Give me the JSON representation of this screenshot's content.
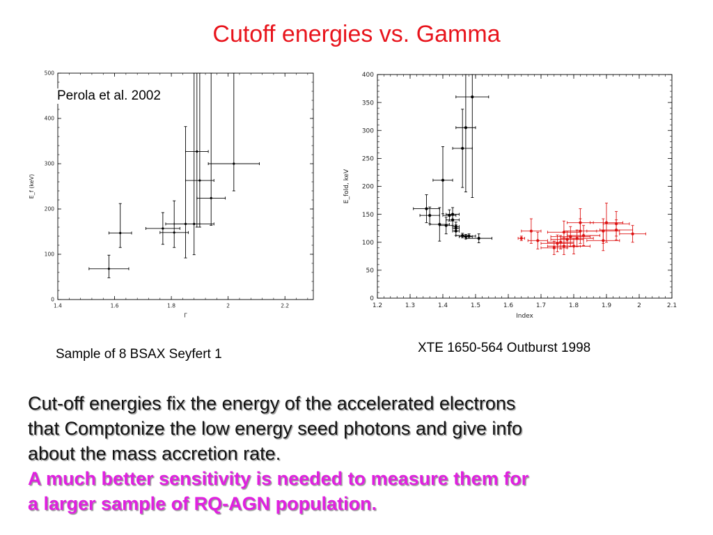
{
  "slide": {
    "title": "Cutoff energies vs. Gamma",
    "caption_left": "Sample of 8 BSAX Seyfert 1",
    "caption_right": "XTE 1650-564 Outburst 1998",
    "annotation_left": "Perola et al. 2002",
    "body_lines": [
      "Cut-off energies fix the energy of the accelerated electrons",
      "that Comptonize the low energy seed photons and give info",
      "about the mass accretion rate."
    ],
    "emph_lines": [
      "A much better sensitivity is needed to measure them for",
      "a larger sample of RQ-AGN population."
    ]
  },
  "colors": {
    "title": "#e8141c",
    "emphasis": "#e020e0",
    "series_black": "#000000",
    "series_red": "#dd1111"
  },
  "chart_data": [
    {
      "type": "scatter",
      "title": "",
      "xlabel": "Γ",
      "ylabel": "E_f (keV)",
      "xlim": [
        1.4,
        2.3
      ],
      "ylim": [
        0,
        500
      ],
      "xticks": [
        1.4,
        1.6,
        1.8,
        2.0,
        2.2
      ],
      "xtick_labels": [
        "1.4",
        "1.6",
        "1.8",
        "2",
        "2.2"
      ],
      "yticks": [
        0,
        100,
        200,
        300,
        400,
        500
      ],
      "ytick_labels": [
        "0",
        "100",
        "200",
        "300",
        "400",
        "500"
      ],
      "grid": false,
      "series": [
        {
          "color": "#000000",
          "points": [
            {
              "x": 1.58,
              "y": 68,
              "xerr": [
                0.07,
                0.07
              ],
              "yerr": [
                20,
                30
              ]
            },
            {
              "x": 1.62,
              "y": 147,
              "xerr": [
                0.04,
                0.04
              ],
              "yerr": [
                32,
                65
              ]
            },
            {
              "x": 1.77,
              "y": 157,
              "xerr": [
                0.06,
                0.06
              ],
              "yerr": [
                35,
                35
              ]
            },
            {
              "x": 1.81,
              "y": 148,
              "xerr": [
                0.05,
                0.05
              ],
              "yerr": [
                33,
                70
              ]
            },
            {
              "x": 1.85,
              "y": 167,
              "xerr": [
                0.07,
                0.05
              ],
              "yerr": [
                75,
                215
              ]
            },
            {
              "x": 1.88,
              "y": 167,
              "xerr": [
                0.07,
                0.07
              ],
              "yerr": [
                68,
                350
              ]
            },
            {
              "x": 1.89,
              "y": 327,
              "xerr": [
                0.04,
                0.04
              ],
              "yerr": [
                167,
                173
              ]
            },
            {
              "x": 1.9,
              "y": 263,
              "xerr": [
                0.05,
                0.05
              ],
              "yerr": [
                103,
                237
              ]
            },
            {
              "x": 1.94,
              "y": 224,
              "xerr": [
                0.05,
                0.05
              ],
              "yerr": [
                60,
                276
              ]
            },
            {
              "x": 2.02,
              "y": 300,
              "xerr": [
                0.09,
                0.09
              ],
              "yerr": [
                60,
                200
              ]
            }
          ]
        }
      ]
    },
    {
      "type": "scatter",
      "title": "",
      "xlabel": "Index",
      "ylabel": "E_fold, keV",
      "xlim": [
        1.2,
        2.1
      ],
      "ylim": [
        0,
        400
      ],
      "xticks": [
        1.2,
        1.3,
        1.4,
        1.5,
        1.6,
        1.7,
        1.8,
        1.9,
        2.0,
        2.1
      ],
      "xtick_labels": [
        "1.2",
        "1.3",
        "1.4",
        "1.5",
        "1.6",
        "1.7",
        "1.8",
        "1.9",
        "2",
        "2.1"
      ],
      "yticks": [
        0,
        50,
        100,
        150,
        200,
        250,
        300,
        350,
        400
      ],
      "ytick_labels": [
        "0",
        "50",
        "100",
        "150",
        "200",
        "250",
        "300",
        "350",
        "400"
      ],
      "grid": false,
      "series": [
        {
          "color": "#000000",
          "points": [
            {
              "x": 1.35,
              "y": 160,
              "xerr": [
                0.04,
                0.04
              ],
              "yerr": [
                25,
                25
              ]
            },
            {
              "x": 1.36,
              "y": 148,
              "xerr": [
                0.03,
                0.03
              ],
              "yerr": [
                15,
                15
              ]
            },
            {
              "x": 1.39,
              "y": 132,
              "xerr": [
                0.03,
                0.03
              ],
              "yerr": [
                30,
                30
              ]
            },
            {
              "x": 1.4,
              "y": 211,
              "xerr": [
                0.03,
                0.03
              ],
              "yerr": [
                60,
                60
              ]
            },
            {
              "x": 1.41,
              "y": 130,
              "xerr": [
                0.02,
                0.02
              ],
              "yerr": [
                15,
                15
              ]
            },
            {
              "x": 1.42,
              "y": 148,
              "xerr": [
                0.02,
                0.02
              ],
              "yerr": [
                10,
                10
              ]
            },
            {
              "x": 1.43,
              "y": 150,
              "xerr": [
                0.02,
                0.02
              ],
              "yerr": [
                12,
                12
              ]
            },
            {
              "x": 1.43,
              "y": 140,
              "xerr": [
                0.02,
                0.02
              ],
              "yerr": [
                10,
                10
              ]
            },
            {
              "x": 1.44,
              "y": 128,
              "xerr": [
                0.01,
                0.01
              ],
              "yerr": [
                8,
                8
              ]
            },
            {
              "x": 1.44,
              "y": 120,
              "xerr": [
                0.01,
                0.01
              ],
              "yerr": [
                8,
                8
              ]
            },
            {
              "x": 1.44,
              "y": 125,
              "xerr": [
                0.01,
                0.01
              ],
              "yerr": [
                6,
                6
              ]
            },
            {
              "x": 1.46,
              "y": 268,
              "xerr": [
                0.03,
                0.03
              ],
              "yerr": [
                70,
                70
              ]
            },
            {
              "x": 1.46,
              "y": 112,
              "xerr": [
                0.02,
                0.02
              ],
              "yerr": [
                4,
                4
              ]
            },
            {
              "x": 1.47,
              "y": 305,
              "xerr": [
                0.03,
                0.03
              ],
              "yerr": [
                115,
                115
              ]
            },
            {
              "x": 1.47,
              "y": 110,
              "xerr": [
                0.02,
                0.02
              ],
              "yerr": [
                4,
                4
              ]
            },
            {
              "x": 1.48,
              "y": 111,
              "xerr": [
                0.02,
                0.02
              ],
              "yerr": [
                4,
                4
              ]
            },
            {
              "x": 1.49,
              "y": 360,
              "xerr": [
                0.05,
                0.05
              ],
              "yerr": [
                180,
                180
              ]
            },
            {
              "x": 1.51,
              "y": 107,
              "xerr": [
                0.04,
                0.04
              ],
              "yerr": [
                8,
                8
              ]
            }
          ]
        },
        {
          "color": "#dd1111",
          "points": [
            {
              "x": 1.64,
              "y": 107,
              "xerr": [
                0.01,
                0.01
              ],
              "yerr": [
                4,
                4
              ]
            },
            {
              "x": 1.67,
              "y": 120,
              "xerr": [
                0.03,
                0.03
              ],
              "yerr": [
                22,
                22
              ]
            },
            {
              "x": 1.69,
              "y": 103,
              "xerr": [
                0.03,
                0.03
              ],
              "yerr": [
                15,
                15
              ]
            },
            {
              "x": 1.74,
              "y": 90,
              "xerr": [
                0.04,
                0.04
              ],
              "yerr": [
                12,
                12
              ]
            },
            {
              "x": 1.75,
              "y": 98,
              "xerr": [
                0.05,
                0.05
              ],
              "yerr": [
                15,
                15
              ]
            },
            {
              "x": 1.76,
              "y": 100,
              "xerr": [
                0.04,
                0.04
              ],
              "yerr": [
                12,
                12
              ]
            },
            {
              "x": 1.77,
              "y": 93,
              "xerr": [
                0.05,
                0.05
              ],
              "yerr": [
                15,
                15
              ]
            },
            {
              "x": 1.78,
              "y": 105,
              "xerr": [
                0.05,
                0.05
              ],
              "yerr": [
                15,
                15
              ]
            },
            {
              "x": 1.77,
              "y": 118,
              "xerr": [
                0.05,
                0.05
              ],
              "yerr": [
                20,
                20
              ]
            },
            {
              "x": 1.79,
              "y": 110,
              "xerr": [
                0.06,
                0.06
              ],
              "yerr": [
                18,
                18
              ]
            },
            {
              "x": 1.8,
              "y": 93,
              "xerr": [
                0.05,
                0.05
              ],
              "yerr": [
                14,
                14
              ]
            },
            {
              "x": 1.81,
              "y": 107,
              "xerr": [
                0.05,
                0.05
              ],
              "yerr": [
                15,
                15
              ]
            },
            {
              "x": 1.82,
              "y": 120,
              "xerr": [
                0.05,
                0.05
              ],
              "yerr": [
                22,
                22
              ]
            },
            {
              "x": 1.82,
              "y": 135,
              "xerr": [
                0.04,
                0.04
              ],
              "yerr": [
                25,
                25
              ]
            },
            {
              "x": 1.83,
              "y": 112,
              "xerr": [
                0.05,
                0.05
              ],
              "yerr": [
                18,
                18
              ]
            },
            {
              "x": 1.89,
              "y": 103,
              "xerr": [
                0.05,
                0.05
              ],
              "yerr": [
                18,
                18
              ]
            },
            {
              "x": 1.89,
              "y": 120,
              "xerr": [
                0.05,
                0.05
              ],
              "yerr": [
                22,
                22
              ]
            },
            {
              "x": 1.9,
              "y": 135,
              "xerr": [
                0.05,
                0.05
              ],
              "yerr": [
                35,
                35
              ]
            },
            {
              "x": 1.93,
              "y": 133,
              "xerr": [
                0.04,
                0.04
              ],
              "yerr": [
                22,
                22
              ]
            },
            {
              "x": 1.93,
              "y": 122,
              "xerr": [
                0.05,
                0.05
              ],
              "yerr": [
                18,
                18
              ]
            },
            {
              "x": 1.98,
              "y": 115,
              "xerr": [
                0.04,
                0.04
              ],
              "yerr": [
                15,
                15
              ]
            }
          ]
        }
      ]
    }
  ]
}
